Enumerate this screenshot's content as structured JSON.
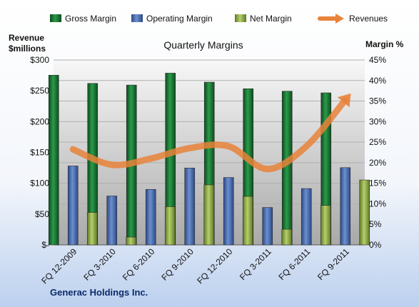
{
  "chart_data": {
    "type": "bar",
    "title": "Quarterly Margins",
    "company": "Generac Holdings Inc.",
    "left_axis_label_line1": "Revenue",
    "left_axis_label_line2": "$millions",
    "right_axis_label": "Margin %",
    "categories": [
      "FQ 12-2009",
      "FQ 3-2010",
      "FQ 6-2010",
      "FQ 9-2010",
      "FQ 12-2010",
      "FQ 3-2011",
      "FQ 6-2011",
      "FQ 9-2011"
    ],
    "left_ticks": [
      "$-",
      "$50",
      "$100",
      "$150",
      "$200",
      "$250",
      "$300"
    ],
    "right_ticks": [
      "0%",
      "5%",
      "10%",
      "15%",
      "20%",
      "25%",
      "30%",
      "35%",
      "40%",
      "45%"
    ],
    "ylim_left": [
      0,
      300
    ],
    "ylim_right": [
      0,
      45
    ],
    "legend_position": "top",
    "grid": true,
    "series": [
      {
        "name": "Gross Margin",
        "axis": "right",
        "kind": "bar",
        "color": "#1f7a3a",
        "values": [
          41.3,
          39.3,
          38.9,
          41.8,
          39.6,
          38.0,
          37.4,
          37.0
        ]
      },
      {
        "name": "Operating Margin",
        "axis": "right",
        "kind": "bar",
        "color": "#4a6fb0",
        "values": [
          19.2,
          11.9,
          13.5,
          18.7,
          16.4,
          9.1,
          13.7,
          18.8
        ]
      },
      {
        "name": "Net Margin",
        "axis": "right",
        "kind": "bar",
        "color": "#8fae4a",
        "values": [
          7.9,
          1.9,
          9.3,
          14.6,
          11.8,
          3.8,
          9.6,
          15.8
        ]
      },
      {
        "name": "Revenues",
        "axis": "left",
        "kind": "line",
        "color": "#e8833a",
        "values": [
          155,
          130,
          140,
          157,
          160,
          123,
          160,
          235
        ]
      }
    ]
  }
}
